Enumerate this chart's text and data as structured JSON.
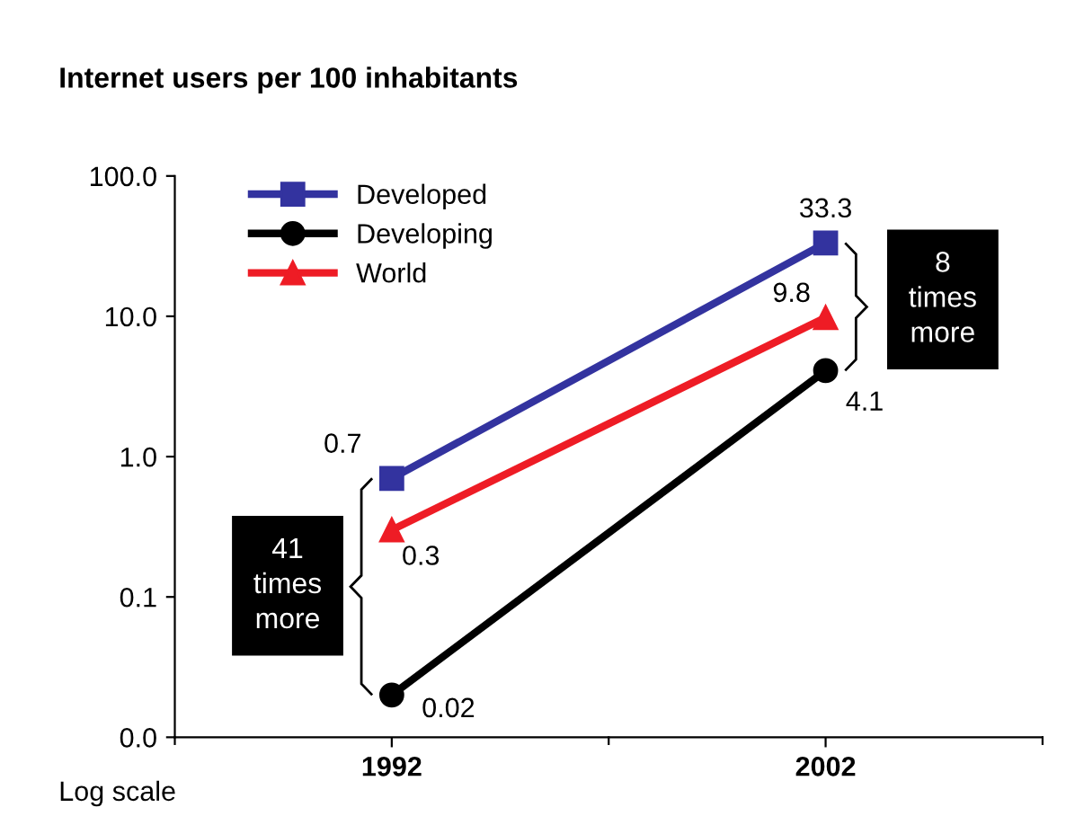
{
  "chart_data": {
    "type": "line",
    "title": "Internet users per 100 inhabitants",
    "x": [
      1992,
      2002
    ],
    "xlim": [
      1987,
      2007
    ],
    "xticks": [
      1992,
      2002
    ],
    "series": [
      {
        "name": "Developed",
        "color": "#33339f",
        "values": [
          0.7,
          33.3
        ],
        "marker": "square"
      },
      {
        "name": "Developing",
        "color": "#000000",
        "values": [
          0.02,
          4.1
        ],
        "marker": "circle"
      },
      {
        "name": "World",
        "color": "#ee1c25",
        "values": [
          0.3,
          9.8
        ],
        "marker": "triangle"
      }
    ],
    "log": "y",
    "ylim": [
      0.01,
      100
    ],
    "yticks": [
      {
        "value": 0.01,
        "label": "0.0"
      },
      0.1,
      {
        "value": 1,
        "label": "1.0"
      },
      {
        "value": 10,
        "label": "10.0"
      },
      {
        "value": 100,
        "label": "100.0"
      }
    ],
    "data_labels": true,
    "legend": "top left",
    "grid": false,
    "line_style": "solid",
    "annotations": [
      "41\ntimes\nmore",
      "8\ntimes\nmore",
      "Log scale"
    ]
  }
}
